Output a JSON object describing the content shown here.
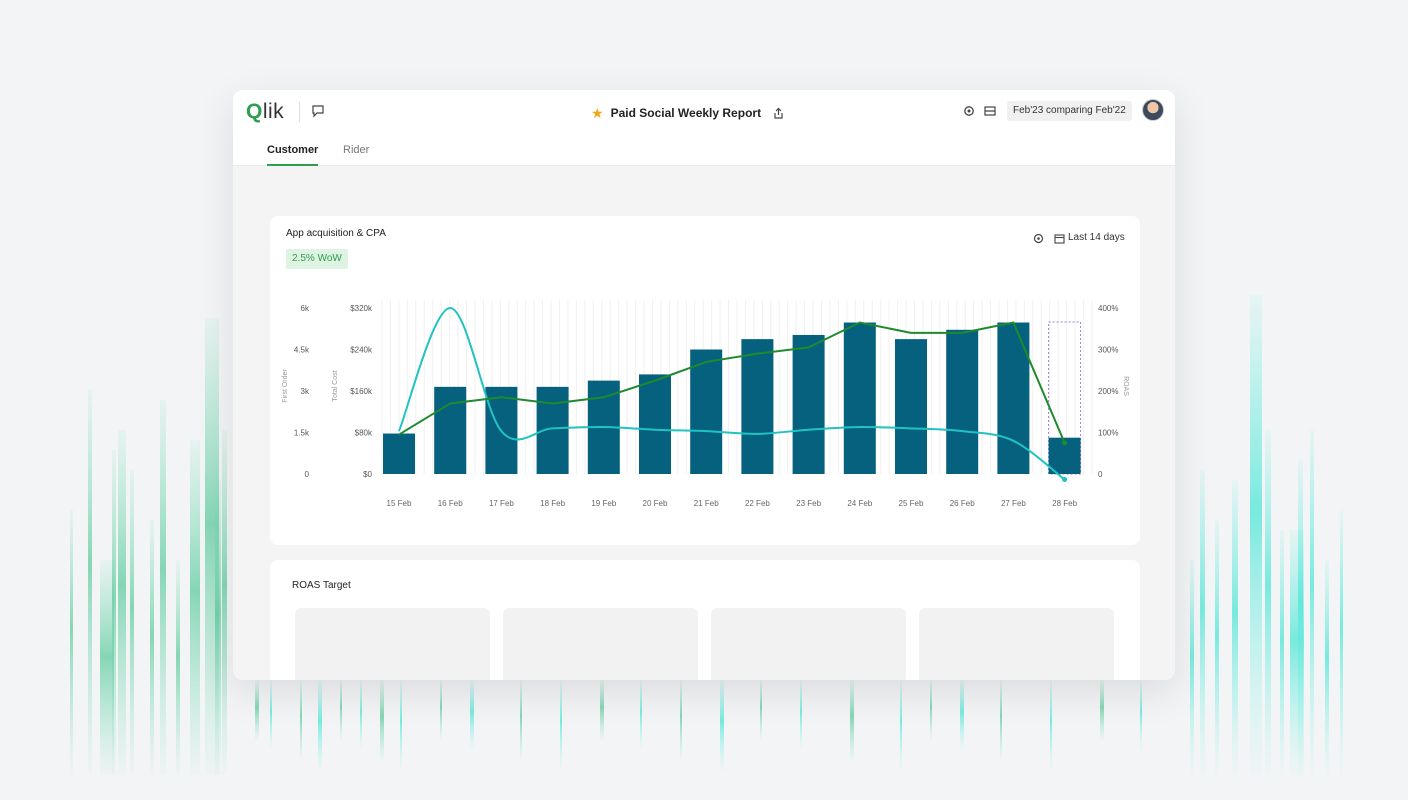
{
  "header": {
    "logo_text": "lik",
    "logo_q": "Q",
    "title": "Paid Social Weekly Report",
    "comparison": "Feb'23 comparing Feb'22"
  },
  "tabs": [
    {
      "label": "Customer",
      "active": true
    },
    {
      "label": "Rider",
      "active": false
    }
  ],
  "card": {
    "title": "App acquisition & CPA",
    "badge": "2.5% WoW",
    "range": "Last 14 days"
  },
  "card2": {
    "title": "ROAS Target"
  },
  "colors": {
    "bar": "#05617d",
    "green_line": "#1e8a2e",
    "teal_line": "#20c2c2",
    "accent": "#2e9e4f"
  },
  "chart_data": {
    "type": "bar",
    "categories": [
      "15 Feb",
      "16 Feb",
      "17 Feb",
      "18 Feb",
      "19 Feb",
      "20 Feb",
      "21 Feb",
      "22 Feb",
      "23 Feb",
      "24 Feb",
      "25 Feb",
      "26 Feb",
      "27 Feb",
      "28 Feb"
    ],
    "y_left1": {
      "label": "First Order",
      "ticks": [
        "0",
        "1.5k",
        "3k",
        "4.5k",
        "6k"
      ],
      "range": [
        0,
        6000
      ]
    },
    "y_left2": {
      "label": "Total Cost",
      "ticks": [
        "$0",
        "$80k",
        "$160k",
        "$240k",
        "$320k"
      ],
      "range": [
        0,
        320000
      ]
    },
    "y_right": {
      "label": "ROAS",
      "ticks": [
        "0",
        "100%",
        "200%",
        "300%",
        "400%"
      ],
      "range": [
        0,
        400
      ]
    },
    "series": [
      {
        "name": "Total Cost",
        "type": "bar",
        "axis": "cost",
        "values": [
          78000,
          168000,
          168000,
          168000,
          180000,
          192000,
          240000,
          260000,
          268000,
          292000,
          260000,
          278000,
          292000,
          70000
        ]
      },
      {
        "name": "First Order",
        "type": "line",
        "axis": "orders",
        "values": [
          1550,
          6000,
          1550,
          1650,
          1700,
          1600,
          1550,
          1450,
          1600,
          1700,
          1650,
          1550,
          1200,
          -200
        ]
      },
      {
        "name": "ROAS",
        "type": "line",
        "axis": "roas",
        "values": [
          95,
          170,
          185,
          170,
          185,
          225,
          270,
          290,
          305,
          365,
          340,
          340,
          365,
          75
        ]
      }
    ],
    "highlighted_category": "28 Feb"
  }
}
